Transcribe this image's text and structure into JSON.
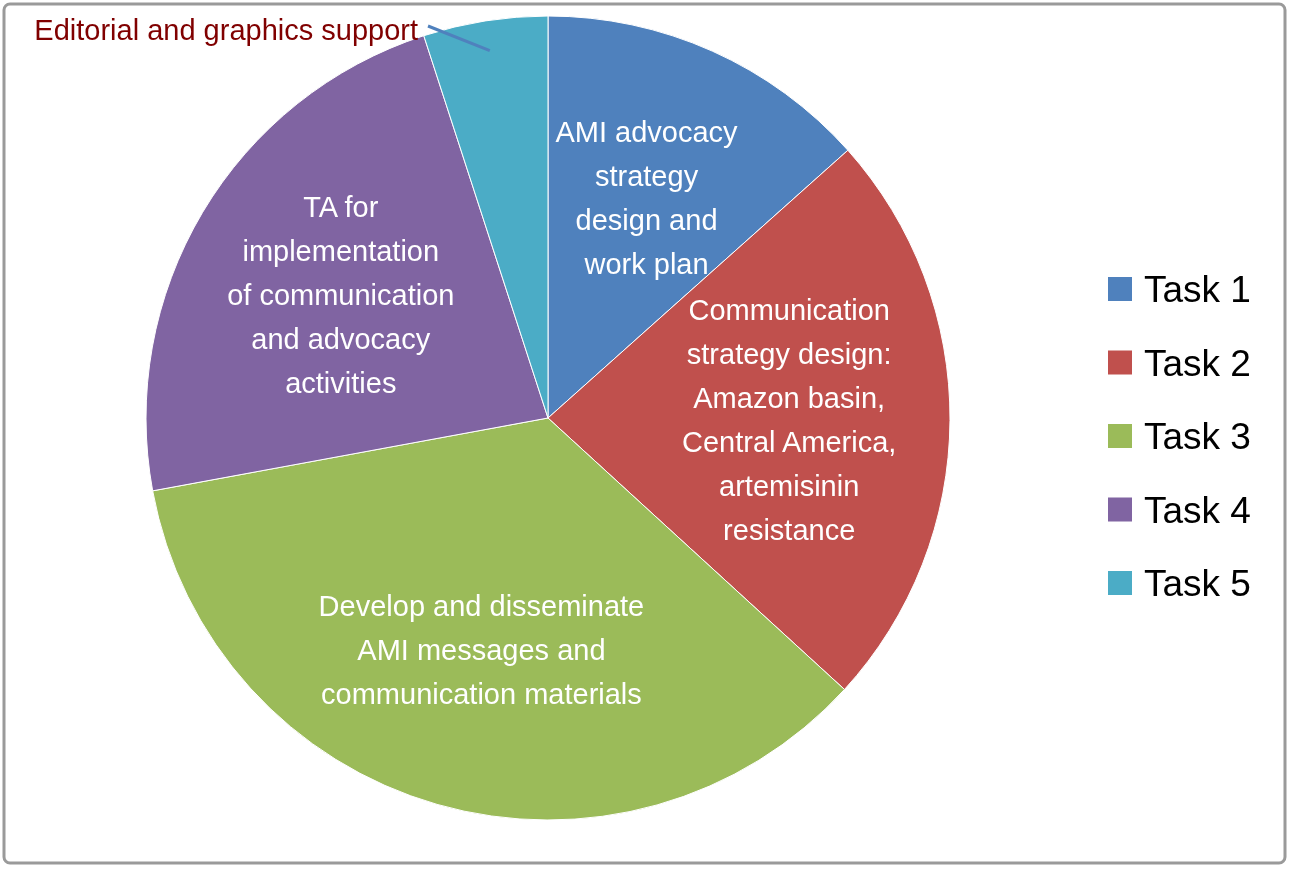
{
  "chart_data": {
    "type": "pie",
    "categories": [
      "Task 1",
      "Task 2",
      "Task 3",
      "Task 4",
      "Task 5"
    ],
    "values": [
      13.4,
      23.4,
      35.3,
      22.9,
      5.0
    ],
    "colors": [
      "#4f81bd",
      "#c0504d",
      "#9bbb59",
      "#8064a2",
      "#4bacc6"
    ],
    "legend": "right",
    "annotations": [
      "AMI advocacy\nstrategy\ndesign and\nwork plan",
      "Communication\nstrategy design:\nAmazon basin,\nCentral America,\nartemisinin\nresistance",
      "Develop and disseminate\nAMI messages and\ncommunication materials",
      "TA for\nimplementation\nof communication\nand advocacy\nactivities",
      "Editorial and graphics support"
    ]
  }
}
